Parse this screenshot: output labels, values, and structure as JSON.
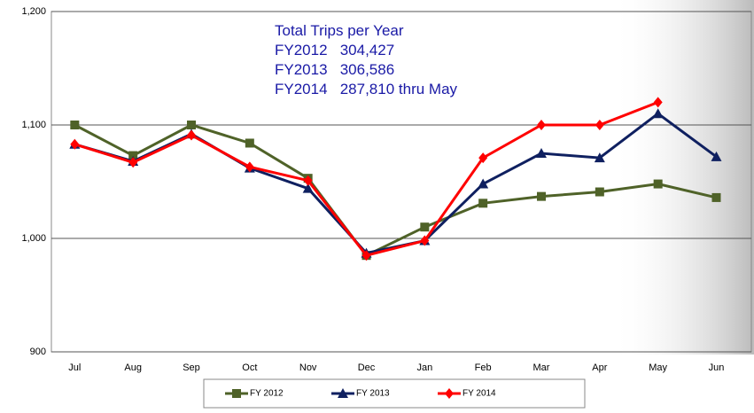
{
  "chart_data": {
    "type": "line",
    "annotation": [
      "Total Trips per Year",
      "FY2012   304,427",
      "FY2013   306,586",
      "FY2014   287,810 thru May"
    ],
    "categories": [
      "Jul",
      "Aug",
      "Sep",
      "Oct",
      "Nov",
      "Dec",
      "Jan",
      "Feb",
      "Mar",
      "Apr",
      "May",
      "Jun"
    ],
    "series": [
      {
        "name": "FY 2012",
        "color": "#4f6228",
        "marker": "square",
        "values": [
          1100,
          1073,
          1100,
          1084,
          1053,
          985,
          1010,
          1031,
          1037,
          1041,
          1048,
          1036
        ]
      },
      {
        "name": "FY 2013",
        "color": "#0f2060",
        "marker": "triangle",
        "values": [
          1083,
          1068,
          1092,
          1062,
          1044,
          987,
          998,
          1048,
          1075,
          1071,
          1110,
          1072
        ]
      },
      {
        "name": "FY 2014",
        "color": "#ff0000",
        "marker": "diamond",
        "values": [
          1083,
          1067,
          1091,
          1063,
          1051,
          985,
          998,
          1071,
          1100,
          1100,
          1120,
          null
        ]
      }
    ],
    "ylim": [
      900,
      1200
    ],
    "yticks": [
      900,
      {
        "value": 1000,
        "label": "1,000"
      },
      {
        "value": 1100,
        "label": "1,100"
      },
      {
        "value": 1200,
        "label": "1,200"
      }
    ],
    "grid": true,
    "legend": "bottom"
  }
}
